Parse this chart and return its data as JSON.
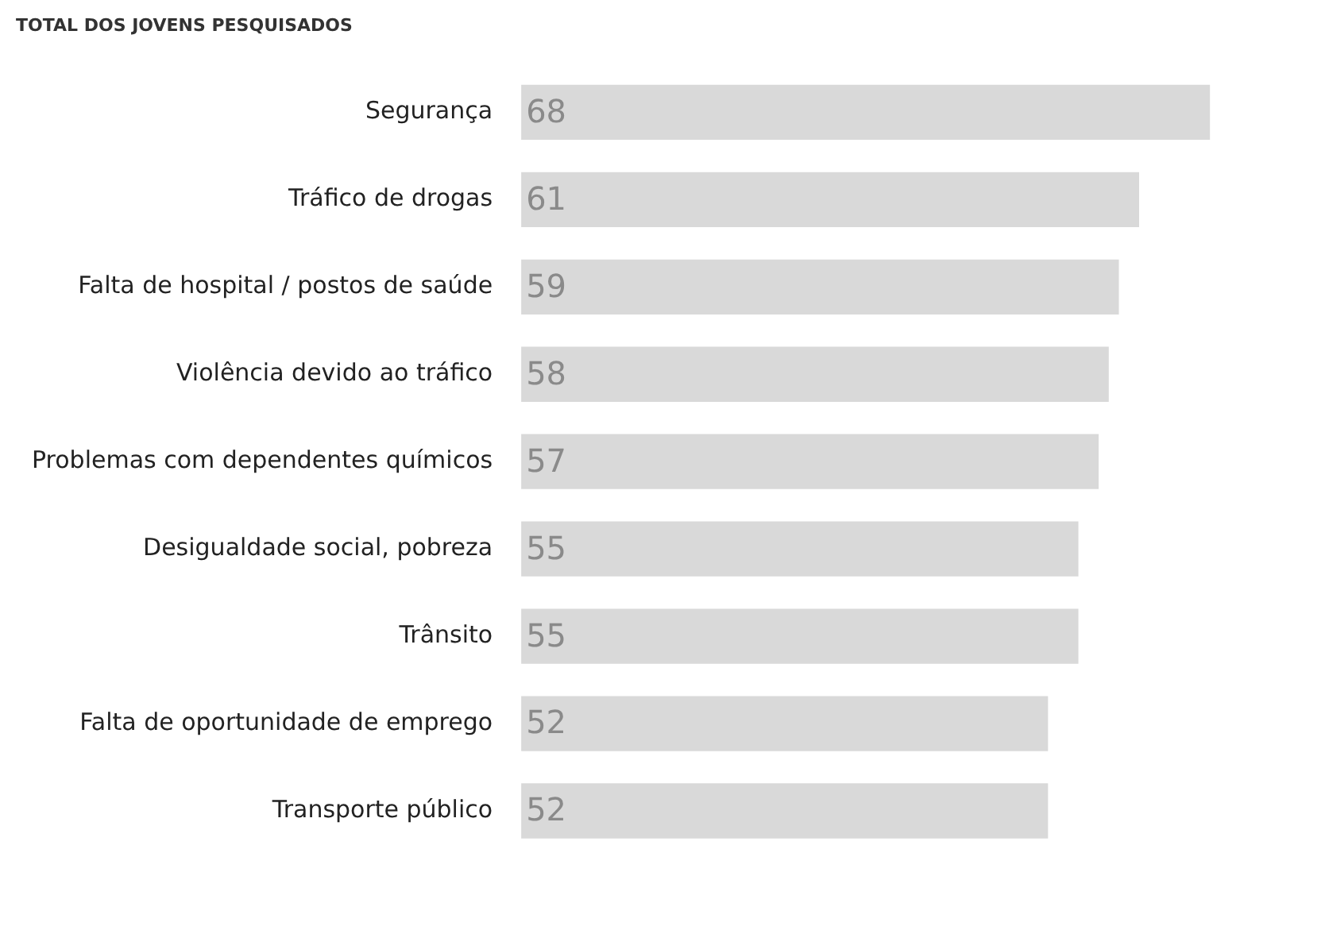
{
  "chart_data": {
    "type": "bar",
    "orientation": "horizontal",
    "title": "TOTAL DOS JOVENS PESQUISADOS",
    "categories": [
      "Segurança",
      "Tráfico de drogas",
      "Falta de hospital / postos de saúde",
      "Violência devido ao tráfico",
      "Problemas com dependentes químicos",
      "Desigualdade social, pobreza",
      "Trânsito",
      "Falta de oportunidade de emprego",
      "Transporte público"
    ],
    "values": [
      68,
      61,
      59,
      58,
      57,
      55,
      55,
      52,
      52
    ],
    "color": "#d9d9d9",
    "data_labels": true,
    "grid": false,
    "legend": false
  }
}
